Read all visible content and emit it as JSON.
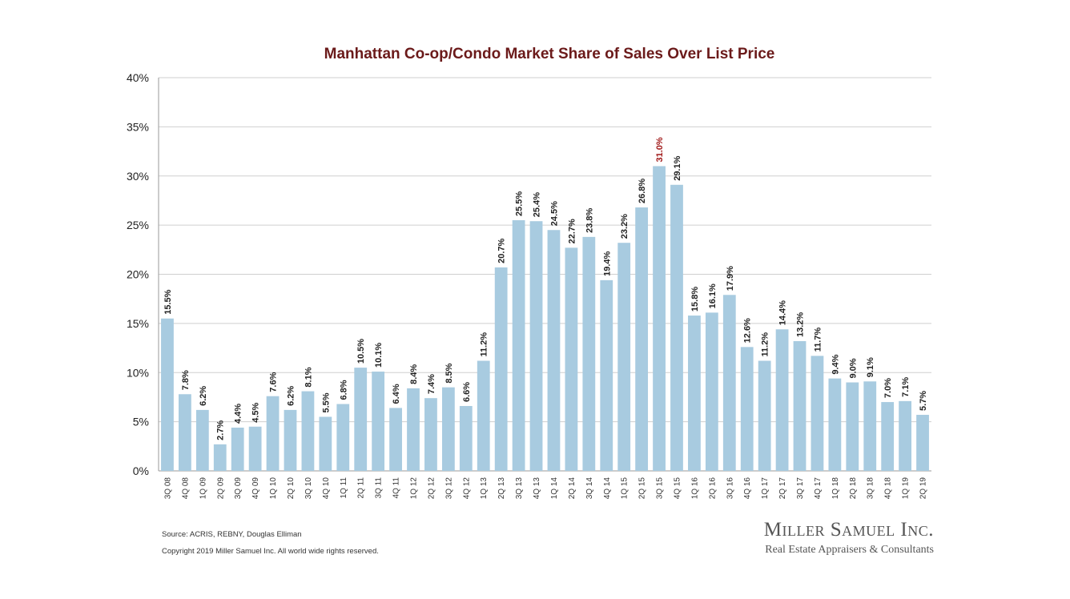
{
  "chart_data": {
    "type": "bar",
    "title": "Manhattan Co-op/Condo Market Share of Sales Over List Price",
    "xlabel": "",
    "ylabel": "",
    "ylim": [
      0,
      40
    ],
    "yticks": [
      "0%",
      "5%",
      "10%",
      "15%",
      "20%",
      "25%",
      "30%",
      "35%",
      "40%"
    ],
    "grid": true,
    "legend": "none",
    "bar_color": "#a8cbe0",
    "highlight_color": "#a11a1a",
    "highlight_index": 28,
    "categories": [
      "3Q 08",
      "4Q 08",
      "1Q 09",
      "2Q 09",
      "3Q 09",
      "4Q 09",
      "1Q 10",
      "2Q 10",
      "3Q 10",
      "4Q 10",
      "1Q 11",
      "2Q 11",
      "3Q 11",
      "4Q 11",
      "1Q 12",
      "2Q 12",
      "3Q 12",
      "4Q 12",
      "1Q 13",
      "2Q 13",
      "3Q 13",
      "4Q 13",
      "1Q 14",
      "2Q 14",
      "3Q 14",
      "4Q 14",
      "1Q 15",
      "2Q 15",
      "3Q 15",
      "4Q 15",
      "1Q 16",
      "2Q 16",
      "3Q 16",
      "4Q 16",
      "1Q 17",
      "2Q 17",
      "3Q 17",
      "4Q 17",
      "1Q 18",
      "2Q 18",
      "3Q 18",
      "4Q 18",
      "1Q 19",
      "2Q 19"
    ],
    "values": [
      15.5,
      7.8,
      6.2,
      2.7,
      4.4,
      4.5,
      7.6,
      6.2,
      8.1,
      5.5,
      6.8,
      10.5,
      10.1,
      6.4,
      8.4,
      7.4,
      8.5,
      6.6,
      11.2,
      20.7,
      25.5,
      25.4,
      24.5,
      22.7,
      23.8,
      19.4,
      23.2,
      26.8,
      31.0,
      29.1,
      15.8,
      16.1,
      17.9,
      12.6,
      11.2,
      14.4,
      13.2,
      11.7,
      9.4,
      9.0,
      9.1,
      7.0,
      7.1,
      5.7
    ],
    "labels": [
      "15.5%",
      "7.8%",
      "6.2%",
      "2.7%",
      "4.4%",
      "4.5%",
      "7.6%",
      "6.2%",
      "8.1%",
      "5.5%",
      "6.8%",
      "10.5%",
      "10.1%",
      "6.4%",
      "8.4%",
      "7.4%",
      "8.5%",
      "6.6%",
      "11.2%",
      "20.7%",
      "25.5%",
      "25.4%",
      "24.5%",
      "22.7%",
      "23.8%",
      "19.4%",
      "23.2%",
      "26.8%",
      "31.0%",
      "29.1%",
      "15.8%",
      "16.1%",
      "17.9%",
      "12.6%",
      "11.2%",
      "14.4%",
      "13.2%",
      "11.7%",
      "9.4%",
      "9.0%",
      "9.1%",
      "7.0%",
      "7.1%",
      "5.7%"
    ]
  },
  "footer": {
    "source": "Source: ACRIS, REBNY, Douglas Elliman",
    "copyright": "Copyright 2019 Miller Samuel Inc.  All world wide rights reserved."
  },
  "brand": {
    "name": "Miller Samuel Inc.",
    "tagline": "Real Estate Appraisers & Consultants"
  }
}
